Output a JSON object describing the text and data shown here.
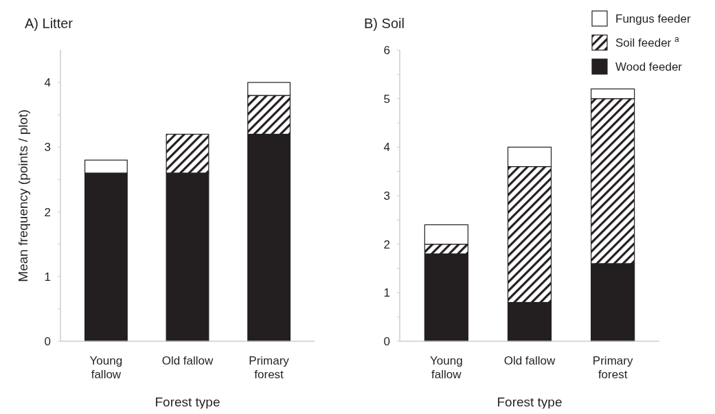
{
  "chart_data": [
    {
      "type": "bar",
      "title": "A) Litter",
      "xlabel": "Forest type",
      "ylabel": "Mean frequency (points / plot)",
      "categories": [
        "Young fallow",
        "Old fallow",
        "Primary forest"
      ],
      "stacked": true,
      "ylim": [
        0,
        4.5
      ],
      "yticks": [
        0,
        {
          "value": 0.5,
          "label": null
        },
        1,
        {
          "value": 1.5,
          "label": null
        },
        2,
        {
          "value": 2.5,
          "label": null
        },
        3,
        {
          "value": 3.5,
          "label": null
        },
        4
      ],
      "legend": false,
      "grid": false,
      "series": [
        {
          "color": "#231f20",
          "values": [
            2.6,
            2.6,
            3.2
          ]
        },
        {
          "color": "#231f20",
          "values": [
            0,
            0.6,
            0.6
          ]
        },
        {
          "color": "#ffffff",
          "values": [
            0.2,
            0,
            0.2
          ]
        }
      ]
    },
    {
      "type": "bar",
      "title": "B) Soil",
      "xlabel": "Forest type",
      "categories": [
        "Young fallow",
        "Old fallow",
        "Primary forest"
      ],
      "stacked": true,
      "ylim": [
        0,
        6
      ],
      "yticks": [
        0,
        {
          "value": 0.5,
          "label": null
        },
        1,
        {
          "value": 1.5,
          "label": null
        },
        2,
        {
          "value": 2.5,
          "label": null
        },
        3,
        {
          "value": 3.5,
          "label": null
        },
        4,
        {
          "value": 4.5,
          "label": null
        },
        5,
        {
          "value": 5.5,
          "label": null
        },
        6
      ],
      "legend": "top right",
      "grid": false,
      "series": [
        {
          "name": "Wood feeder",
          "color": "#231f20",
          "values": [
            1.8,
            0.8,
            1.6
          ]
        },
        {
          "name": "Soil feeder $^{a}$",
          "color": "#231f20",
          "values": [
            0.2,
            2.8,
            3.4
          ]
        },
        {
          "name": "Fungus feeder",
          "color": "#ffffff",
          "values": [
            0.4,
            0.4,
            0.2
          ]
        }
      ]
    }
  ]
}
